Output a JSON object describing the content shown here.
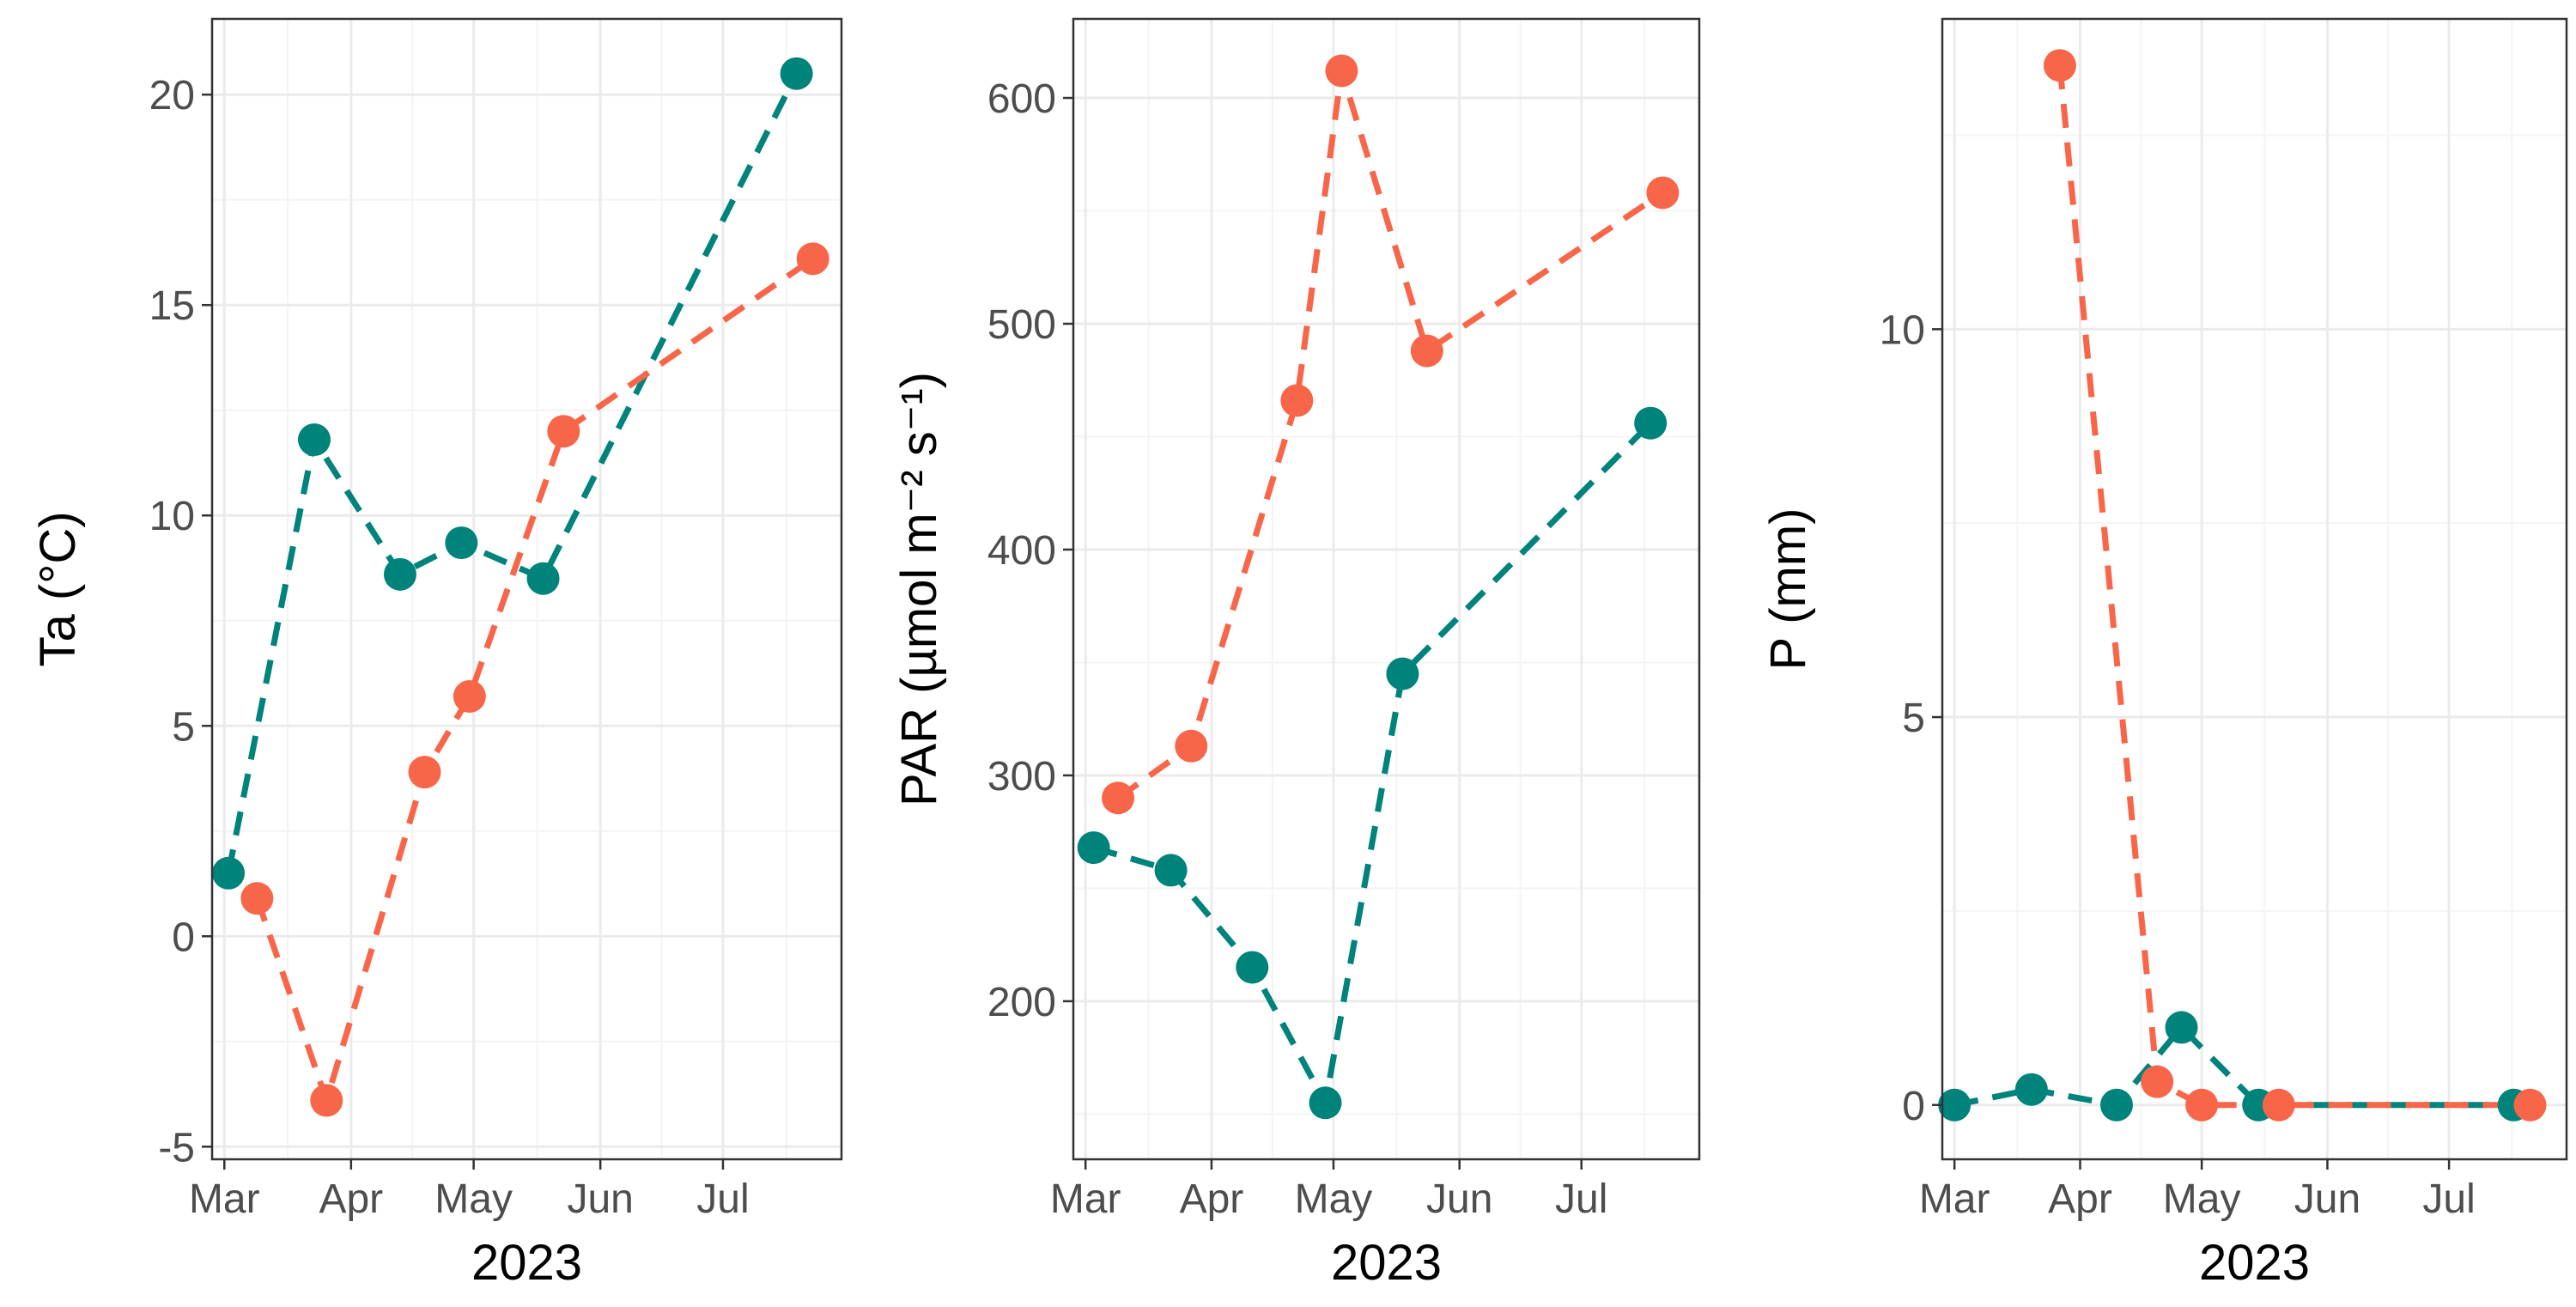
{
  "colors": {
    "series_a": "#00837b",
    "series_b": "#f8664a"
  },
  "chart_data": [
    {
      "type": "line",
      "ylabel": "Ta (°C)",
      "xlabel": "2023",
      "x_tick_labels": [
        "Mar",
        "Apr",
        "May",
        "Jun",
        "Jul"
      ],
      "y_ticks": [
        -5,
        0,
        5,
        10,
        15,
        20
      ],
      "y_tick_labels": [
        "-5",
        "0",
        "5",
        "10",
        "15",
        "20"
      ],
      "xlim": [
        "2023-02-26",
        "2023-07-30"
      ],
      "ylim": [
        -5.3,
        21.8
      ],
      "grid": true,
      "line_style": "dashed with points",
      "series": [
        {
          "color": "#00837b",
          "x": [
            "2023-03-02",
            "2023-03-23",
            "2023-04-13",
            "2023-04-28",
            "2023-05-18",
            "2023-07-19"
          ],
          "y": [
            1.5,
            11.8,
            8.6,
            9.35,
            8.5,
            20.5
          ]
        },
        {
          "color": "#f8664a",
          "x": [
            "2023-03-09",
            "2023-03-26",
            "2023-04-19",
            "2023-04-30",
            "2023-05-23",
            "2023-07-23"
          ],
          "y": [
            0.9,
            -3.9,
            3.9,
            5.7,
            12.0,
            16.1
          ]
        }
      ]
    },
    {
      "type": "line",
      "ylabel": "PAR (µmol m⁻² s⁻¹)",
      "xlabel": "2023",
      "x_tick_labels": [
        "Mar",
        "Apr",
        "May",
        "Jun",
        "Jul"
      ],
      "y_ticks": [
        200,
        300,
        400,
        500,
        600
      ],
      "y_tick_labels": [
        "200",
        "300",
        "400",
        "500",
        "600"
      ],
      "xlim": [
        "2023-02-26",
        "2023-07-30"
      ],
      "ylim": [
        130,
        635
      ],
      "grid": true,
      "line_style": "dashed with points",
      "series": [
        {
          "color": "#00837b",
          "x": [
            "2023-03-03",
            "2023-03-22",
            "2023-04-11",
            "2023-04-29",
            "2023-05-18",
            "2023-07-18"
          ],
          "y": [
            268,
            258,
            215,
            155,
            345,
            456
          ]
        },
        {
          "color": "#f8664a",
          "x": [
            "2023-03-09",
            "2023-03-27",
            "2023-04-22",
            "2023-05-03",
            "2023-05-24",
            "2023-07-21"
          ],
          "y": [
            290,
            313,
            466,
            612,
            488,
            558
          ]
        }
      ]
    },
    {
      "type": "line",
      "ylabel": "P (mm)",
      "xlabel": "2023",
      "x_tick_labels": [
        "Mar",
        "Apr",
        "May",
        "Jun",
        "Jul"
      ],
      "y_ticks": [
        0,
        5,
        10
      ],
      "y_tick_labels": [
        "0",
        "5",
        "10"
      ],
      "xlim": [
        "2023-02-26",
        "2023-07-30"
      ],
      "ylim": [
        -0.7,
        14.0
      ],
      "grid": true,
      "line_style": "dashed with points",
      "series": [
        {
          "color": "#00837b",
          "x": [
            "2023-03-01",
            "2023-03-20",
            "2023-04-10",
            "2023-04-26",
            "2023-05-15",
            "2023-07-17"
          ],
          "y": [
            0.0,
            0.2,
            0.0,
            1.0,
            0.0,
            0.0
          ]
        },
        {
          "color": "#f8664a",
          "x": [
            "2023-03-27",
            "2023-04-20",
            "2023-05-01",
            "2023-05-20",
            "2023-07-21"
          ],
          "y": [
            13.4,
            0.3,
            0.0,
            0.0,
            0.0
          ]
        }
      ]
    }
  ]
}
